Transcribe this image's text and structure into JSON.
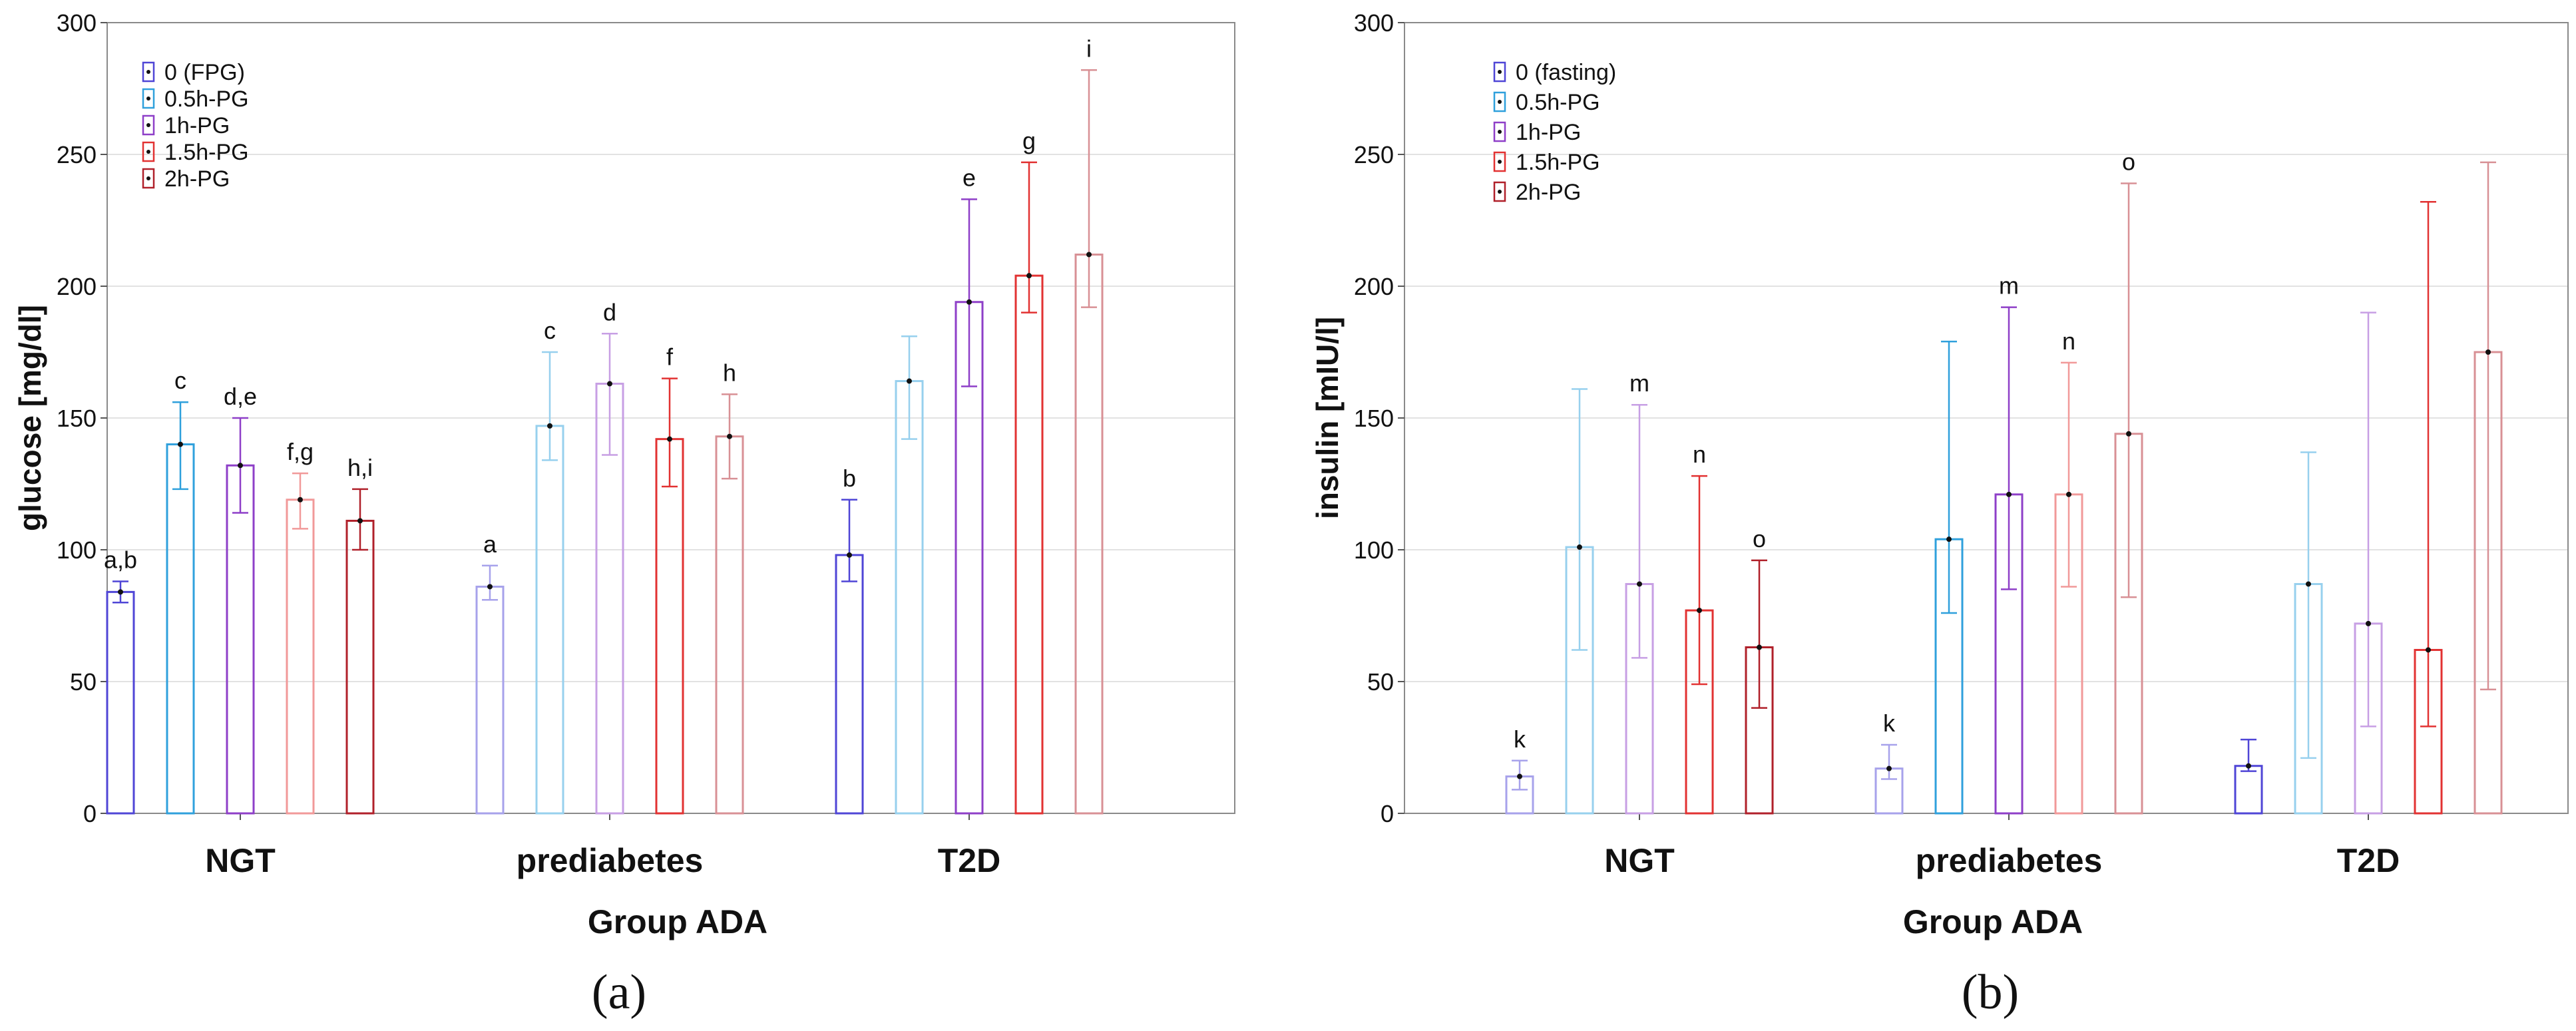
{
  "chart_data": [
    {
      "type": "bar",
      "panel_label": "(a)",
      "ylabel": "glucose [mg/dl]",
      "xlabel": "Group ADA",
      "ylim": [
        0,
        300
      ],
      "yticks": [
        0,
        50,
        100,
        150,
        200,
        250,
        300
      ],
      "grid": true,
      "legend_position": "top-left",
      "categories": [
        "NGT",
        "prediabetes",
        "T2D"
      ],
      "series": [
        {
          "name": "0 (FPG)",
          "color": "#4f45d6",
          "values": [
            84,
            86,
            98
          ],
          "err_low": [
            80,
            81,
            88
          ],
          "err_high": [
            88,
            94,
            119
          ],
          "annotations": [
            "a,b",
            "a",
            "b"
          ],
          "light_in": [
            1
          ]
        },
        {
          "name": "0.5h-PG",
          "color": "#2fa0dc",
          "values": [
            140,
            147,
            164
          ],
          "err_low": [
            123,
            134,
            142
          ],
          "err_high": [
            156,
            175,
            181
          ],
          "annotations": [
            "c",
            "c",
            ""
          ],
          "light_in": [
            1,
            2
          ]
        },
        {
          "name": "1h-PG",
          "color": "#8e3fc8",
          "values": [
            132,
            163,
            194
          ],
          "err_low": [
            114,
            136,
            162
          ],
          "err_high": [
            150,
            182,
            233
          ],
          "annotations": [
            "d,e",
            "d",
            "e"
          ],
          "light_in": [
            1
          ]
        },
        {
          "name": "1.5h-PG",
          "color": "#e23232",
          "values": [
            119,
            142,
            204
          ],
          "err_low": [
            108,
            124,
            190
          ],
          "err_high": [
            129,
            165,
            247
          ],
          "annotations": [
            "f,g",
            "f",
            "g"
          ],
          "light_in": [
            0
          ]
        },
        {
          "name": "2h-PG",
          "color": "#b0202a",
          "values": [
            111,
            143,
            212
          ],
          "err_low": [
            100,
            127,
            192
          ],
          "err_high": [
            123,
            159,
            282
          ],
          "annotations": [
            "h,i",
            "h",
            "i"
          ],
          "light_in": [
            1,
            2
          ]
        }
      ]
    },
    {
      "type": "bar",
      "panel_label": "(b)",
      "ylabel": "insulin [mIU/l]",
      "xlabel": "Group ADA",
      "ylim": [
        0,
        300
      ],
      "yticks": [
        0,
        50,
        100,
        150,
        200,
        250,
        300
      ],
      "grid": true,
      "legend_position": "top-left",
      "categories": [
        "NGT",
        "prediabetes",
        "T2D"
      ],
      "series": [
        {
          "name": "0 (fasting)",
          "color": "#4f45d6",
          "values": [
            14,
            17,
            18
          ],
          "err_low": [
            9,
            13,
            16
          ],
          "err_high": [
            20,
            26,
            28
          ],
          "annotations": [
            "k",
            "k",
            ""
          ],
          "light_in": [
            0,
            1
          ]
        },
        {
          "name": "0.5h-PG",
          "color": "#2fa0dc",
          "values": [
            101,
            104,
            87
          ],
          "err_low": [
            62,
            76,
            21
          ],
          "err_high": [
            161,
            179,
            137
          ],
          "annotations": [
            "",
            "",
            ""
          ],
          "light_in": [
            0,
            2
          ]
        },
        {
          "name": "1h-PG",
          "color": "#8e3fc8",
          "values": [
            87,
            121,
            72
          ],
          "err_low": [
            59,
            85,
            33
          ],
          "err_high": [
            155,
            192,
            190
          ],
          "annotations": [
            "m",
            "m",
            ""
          ],
          "light_in": [
            0,
            2
          ]
        },
        {
          "name": "1.5h-PG",
          "color": "#e23232",
          "values": [
            77,
            121,
            62
          ],
          "err_low": [
            49,
            86,
            33
          ],
          "err_high": [
            128,
            171,
            232
          ],
          "annotations": [
            "n",
            "n",
            ""
          ],
          "light_in": [
            1
          ]
        },
        {
          "name": "2h-PG",
          "color": "#b0202a",
          "values": [
            63,
            144,
            175
          ],
          "err_low": [
            40,
            82,
            47
          ],
          "err_high": [
            96,
            239,
            247
          ],
          "annotations": [
            "o",
            "o",
            ""
          ],
          "light_in": [
            1,
            2
          ]
        }
      ]
    }
  ]
}
